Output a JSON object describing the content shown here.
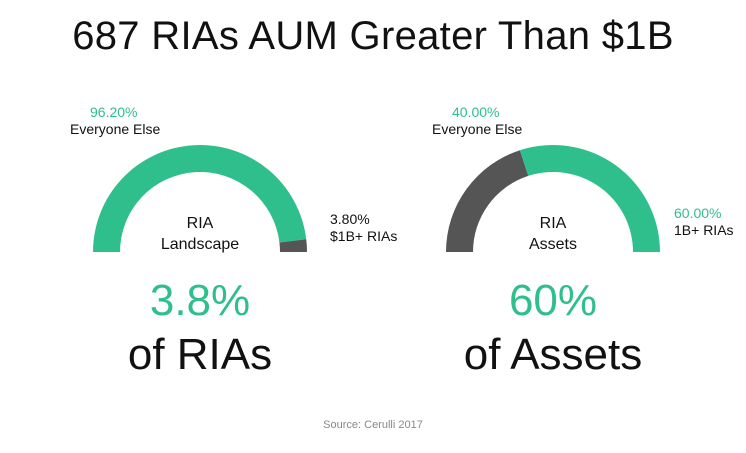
{
  "title": "687 RIAs AUM Greater Than $1B",
  "colors": {
    "accent": "#2fbf8c",
    "dark": "#555555"
  },
  "chart_data": [
    {
      "type": "pie",
      "variant": "half-donut-gauge",
      "center_label": [
        "RIA",
        "Landscape"
      ],
      "slices": [
        {
          "label": "Everyone Else",
          "value": 96.2,
          "display": "96.20%",
          "color": "#2fbf8c"
        },
        {
          "label": "$1B+ RIAs",
          "value": 3.8,
          "display": "3.80%",
          "color": "#555555"
        }
      ],
      "headline_value": "3.8%",
      "headline_text": "of RIAs"
    },
    {
      "type": "pie",
      "variant": "half-donut-gauge",
      "center_label": [
        "RIA",
        "Assets"
      ],
      "slices": [
        {
          "label": "Everyone Else",
          "value": 40.0,
          "display": "40.00%",
          "color": "#555555"
        },
        {
          "label": "1B+ RIAs",
          "value": 60.0,
          "display": "60.00%",
          "color": "#2fbf8c"
        }
      ],
      "headline_value": "60%",
      "headline_text": "of Assets"
    }
  ],
  "source": "Source: Cerulli 2017"
}
